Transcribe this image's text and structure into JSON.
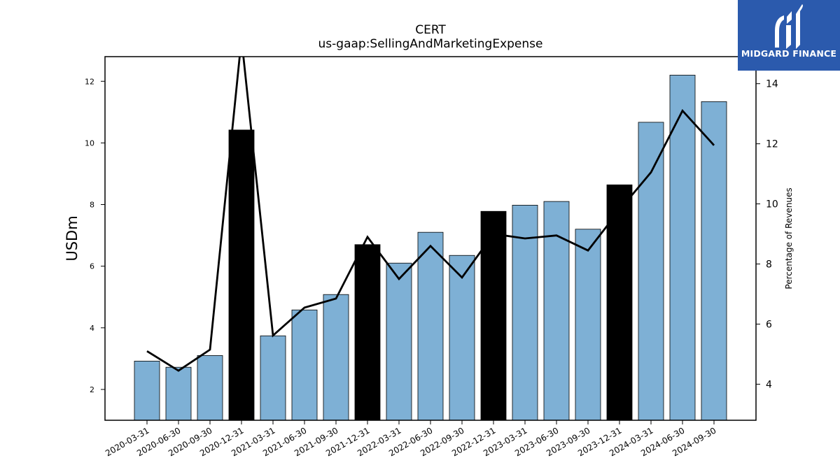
{
  "brand": {
    "name": "MIDGARD FINANCE",
    "color": "#2b5aad"
  },
  "chart_data": {
    "type": "bar",
    "title": "CERT",
    "subtitle": "us-gaap:SellingAndMarketingExpense",
    "ylabel": "USDm",
    "y2label": "Percentage of Revenues",
    "ylim": [
      1.0,
      12.8
    ],
    "y2lim": [
      2.8,
      14.9
    ],
    "yticks": [
      2,
      4,
      6,
      8,
      10,
      12
    ],
    "y2ticks": [
      4,
      6,
      8,
      10,
      12,
      14
    ],
    "categories": [
      "2020-03-31",
      "2020-06-30",
      "2020-09-30",
      "2020-12-31",
      "2021-03-31",
      "2021-06-30",
      "2021-09-30",
      "2021-12-31",
      "2022-03-31",
      "2022-06-30",
      "2022-09-30",
      "2022-12-31",
      "2023-03-31",
      "2023-06-30",
      "2023-09-30",
      "2023-12-31",
      "2024-03-31",
      "2024-06-30",
      "2024-09-30"
    ],
    "series": [
      {
        "kind": "bar",
        "axis": "left",
        "values": [
          2.92,
          2.72,
          3.1,
          10.42,
          3.74,
          4.58,
          5.08,
          6.7,
          6.1,
          7.1,
          6.35,
          7.78,
          7.98,
          8.1,
          7.2,
          8.64,
          10.67,
          12.2,
          11.34
        ],
        "highlight": [
          false,
          false,
          false,
          true,
          false,
          false,
          false,
          true,
          false,
          false,
          false,
          true,
          false,
          false,
          false,
          true,
          false,
          false,
          false
        ]
      },
      {
        "kind": "line",
        "axis": "right",
        "values": [
          5.1,
          4.45,
          5.15,
          15.5,
          5.62,
          6.55,
          6.85,
          8.9,
          7.5,
          8.6,
          7.55,
          9.0,
          8.85,
          8.95,
          8.45,
          9.8,
          11.05,
          13.1,
          11.95
        ]
      }
    ],
    "colors": {
      "bar": "#7eb0d5",
      "bar_highlight": "#000000",
      "line": "#000000"
    },
    "grid": false,
    "legend": "none"
  }
}
